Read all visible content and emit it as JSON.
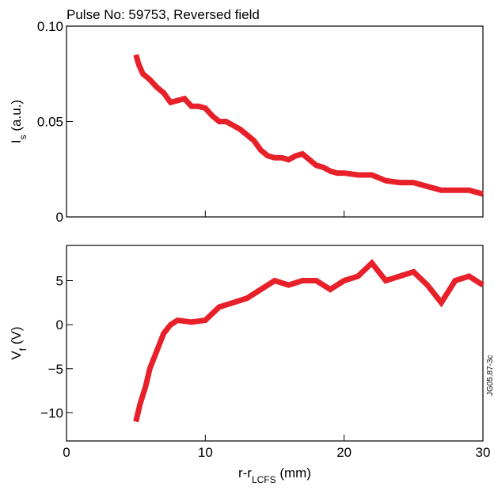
{
  "title": "Pulse No: 59753, Reversed field",
  "annotation": "JG05.87-3c",
  "chart_data": [
    {
      "type": "line",
      "ylabel_parts": [
        "I",
        "s",
        " (a.u.)"
      ],
      "xlim": [
        0,
        30
      ],
      "xticks": [
        0,
        10,
        20,
        30
      ],
      "ylim": [
        0,
        0.1
      ],
      "yticks": [
        0,
        0.05,
        {
          "value": 0.1,
          "label": "0.10"
        }
      ],
      "series": [
        {
          "color": "#e8202a",
          "x": [
            5,
            5.2,
            5.5,
            6,
            6.5,
            7,
            7.5,
            8,
            8.5,
            9,
            9.5,
            10,
            10.5,
            11,
            11.5,
            12,
            12.5,
            13,
            13.5,
            14,
            14.5,
            15,
            15.5,
            16,
            16.5,
            17,
            17.5,
            18,
            18.5,
            19,
            19.5,
            20,
            21,
            22,
            23,
            24,
            25,
            26,
            27,
            28,
            29,
            30
          ],
          "values": [
            0.085,
            0.08,
            0.075,
            0.072,
            0.068,
            0.065,
            0.06,
            0.061,
            0.062,
            0.058,
            0.058,
            0.057,
            0.053,
            0.05,
            0.05,
            0.048,
            0.046,
            0.043,
            0.04,
            0.035,
            0.032,
            0.031,
            0.031,
            0.03,
            0.032,
            0.033,
            0.03,
            0.027,
            0.026,
            0.024,
            0.023,
            0.023,
            0.022,
            0.022,
            0.019,
            0.018,
            0.018,
            0.016,
            0.014,
            0.014,
            0.014,
            0.012
          ]
        }
      ]
    },
    {
      "type": "line",
      "ylabel_parts": [
        "V",
        "f",
        " (V)"
      ],
      "xlabel_parts": [
        "r-r",
        "LCFS",
        " (mm)"
      ],
      "xlim": [
        0,
        30
      ],
      "xticks": [
        0,
        10,
        20,
        30
      ],
      "ylim": [
        -13.2,
        9.0
      ],
      "yticks": [
        5,
        0,
        {
          "value": -5,
          "label": "−5"
        },
        {
          "value": -10,
          "label": "−10"
        }
      ],
      "series": [
        {
          "color": "#e8202a",
          "x": [
            5,
            5.3,
            5.7,
            6,
            6.5,
            7,
            7.5,
            8,
            9,
            10,
            11,
            12,
            13,
            14,
            15,
            16,
            17,
            18,
            19,
            20,
            21,
            22,
            23,
            24,
            25,
            26,
            27,
            28,
            29,
            30
          ],
          "values": [
            -11,
            -9,
            -7,
            -5,
            -3,
            -1,
            0,
            0.5,
            0.3,
            0.5,
            2,
            2.5,
            3,
            4,
            5,
            4.5,
            5,
            5,
            4,
            5,
            5.5,
            7,
            5,
            5.5,
            6,
            4.5,
            2.5,
            5,
            5.5,
            4.5
          ]
        }
      ]
    }
  ]
}
